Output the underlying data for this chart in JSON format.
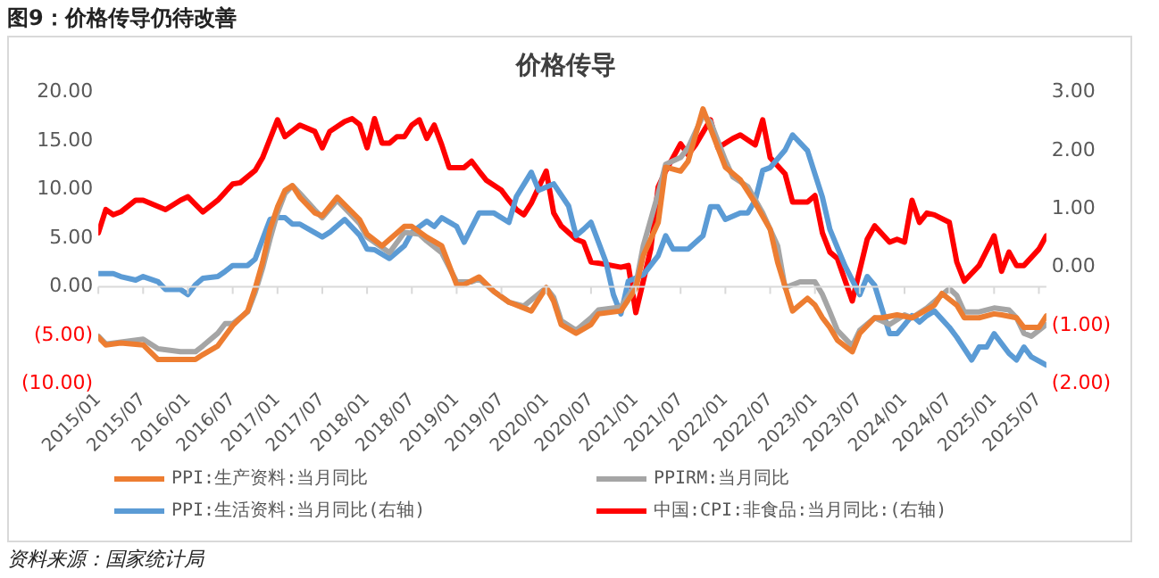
{
  "chart_data": {
    "type": "line",
    "title": "图9：价格传导仍待改善",
    "subtitle": "价格传导",
    "annotations": [
      "资料来源：国家统计局"
    ],
    "xlim": [
      "2015-01",
      "2025-08"
    ],
    "xticks": [
      {
        "value": "2015-01",
        "label": "2015/01"
      },
      {
        "value": "2015-07",
        "label": "2015/07"
      },
      {
        "value": "2016-01",
        "label": "2016/01"
      },
      {
        "value": "2016-07",
        "label": "2016/07"
      },
      {
        "value": "2017-01",
        "label": "2017/01"
      },
      {
        "value": "2017-07",
        "label": "2017/07"
      },
      {
        "value": "2018-01",
        "label": "2018/01"
      },
      {
        "value": "2018-07",
        "label": "2018/07"
      },
      {
        "value": "2019-01",
        "label": "2019/01"
      },
      {
        "value": "2019-07",
        "label": "2019/07"
      },
      {
        "value": "2020-01",
        "label": "2020/01"
      },
      {
        "value": "2020-07",
        "label": "2020/07"
      },
      {
        "value": "2021-01",
        "label": "2021/01"
      },
      {
        "value": "2021-07",
        "label": "2021/07"
      },
      {
        "value": "2022-01",
        "label": "2022/01"
      },
      {
        "value": "2022-07",
        "label": "2022/07"
      },
      {
        "value": "2023-01",
        "label": "2023/01"
      },
      {
        "value": "2023-07",
        "label": "2023/07"
      },
      {
        "value": "2024-01",
        "label": "2024/01"
      },
      {
        "value": "2024-07",
        "label": "2024/07"
      },
      {
        "value": "2025-01",
        "label": "2025/01"
      },
      {
        "value": "2025-07",
        "label": "2025/07"
      }
    ],
    "ylim": [
      -10,
      20
    ],
    "yticks": [
      {
        "value": -10,
        "label": "(10.00)"
      },
      {
        "value": -5,
        "label": "(5.00)"
      },
      {
        "value": 0,
        "label": "0.00"
      },
      {
        "value": 5,
        "label": "5.00"
      },
      {
        "value": 10,
        "label": "10.00"
      },
      {
        "value": 15,
        "label": "15.00"
      },
      {
        "value": 20,
        "label": "20.00"
      }
    ],
    "y2lim": [
      -2,
      3
    ],
    "y2ticks": [
      {
        "value": -2,
        "label": "(2.00)"
      },
      {
        "value": -1,
        "label": "(1.00)"
      },
      {
        "value": 0,
        "label": "0.00"
      },
      {
        "value": 1,
        "label": "1.00"
      },
      {
        "value": 2,
        "label": "2.00"
      },
      {
        "value": 3,
        "label": "3.00"
      }
    ],
    "ref_lines": [
      {
        "axis": "y",
        "value": 0,
        "color": "#d9d9d9"
      }
    ],
    "grid": false,
    "legend": "bottom",
    "marker": "none",
    "line_style": "solid",
    "series": [
      {
        "name": "PPI:生产资料:当月同比",
        "color": "#ed7d31",
        "x": [
          "2015-01",
          "2015-02",
          "2015-04",
          "2015-07",
          "2015-09",
          "2015-12",
          "2016-02",
          "2016-03",
          "2016-05",
          "2016-07",
          "2016-09",
          "2016-10",
          "2016-11",
          "2016-12",
          "2017-01",
          "2017-02",
          "2017-03",
          "2017-04",
          "2017-06",
          "2017-07",
          "2017-09",
          "2017-12",
          "2018-01",
          "2018-03",
          "2018-06",
          "2018-07",
          "2018-09",
          "2018-11",
          "2019-01",
          "2019-02",
          "2019-04",
          "2019-06",
          "2019-08",
          "2019-11",
          "2020-01",
          "2020-02",
          "2020-03",
          "2020-05",
          "2020-07",
          "2020-08",
          "2020-11",
          "2021-01",
          "2021-02",
          "2021-04",
          "2021-05",
          "2021-07",
          "2021-08",
          "2021-10",
          "2021-11",
          "2022-01",
          "2022-03",
          "2022-05",
          "2022-07",
          "2022-08",
          "2022-10",
          "2022-12",
          "2023-01",
          "2023-02",
          "2023-03",
          "2023-04",
          "2023-06",
          "2023-07",
          "2023-09",
          "2023-10",
          "2023-12",
          "2024-02",
          "2024-03",
          "2024-05",
          "2024-06",
          "2024-08",
          "2024-09",
          "2024-11",
          "2025-01",
          "2025-02",
          "2025-04",
          "2025-05",
          "2025-07",
          "2025-08"
        ],
        "values": [
          -5.2,
          -6.0,
          -5.8,
          -6.0,
          -7.5,
          -7.5,
          -7.5,
          -7.0,
          -6.1,
          -4.0,
          -2.5,
          -0.2,
          2.5,
          5.9,
          8.2,
          9.9,
          10.4,
          9.2,
          7.6,
          7.3,
          9.2,
          6.9,
          5.4,
          4.2,
          6.2,
          6.2,
          5.1,
          4.2,
          0.2,
          0.2,
          1.0,
          -0.5,
          -1.6,
          -2.5,
          -0.1,
          -1.5,
          -3.9,
          -4.8,
          -3.9,
          -2.8,
          -2.5,
          -0.2,
          3.2,
          6.6,
          12.3,
          11.9,
          12.9,
          18.3,
          16.3,
          12.3,
          11.0,
          8.6,
          5.9,
          2.5,
          -2.5,
          -1.2,
          -1.9,
          -3.2,
          -4.2,
          -5.5,
          -6.7,
          -4.8,
          -3.2,
          -3.2,
          -2.9,
          -3.2,
          -2.8,
          -1.9,
          -0.7,
          -1.9,
          -3.2,
          -3.2,
          -2.8,
          -2.9,
          -3.2,
          -4.2,
          -4.2,
          -3.0
        ]
      },
      {
        "name": "PPIRM:当月同比",
        "color": "#a5a5a5",
        "x": [
          "2015-01",
          "2015-02",
          "2015-07",
          "2015-09",
          "2015-12",
          "2016-02",
          "2016-03",
          "2016-05",
          "2016-06",
          "2016-07",
          "2016-09",
          "2016-10",
          "2016-11",
          "2016-12",
          "2017-01",
          "2017-02",
          "2017-03",
          "2017-04",
          "2017-06",
          "2017-07",
          "2017-09",
          "2017-12",
          "2018-01",
          "2018-04",
          "2018-06",
          "2018-08",
          "2018-09",
          "2018-11",
          "2019-01",
          "2019-03",
          "2019-04",
          "2019-06",
          "2019-08",
          "2019-10",
          "2020-01",
          "2020-02",
          "2020-03",
          "2020-05",
          "2020-07",
          "2020-08",
          "2020-11",
          "2021-01",
          "2021-02",
          "2021-04",
          "2021-05",
          "2021-07",
          "2021-08",
          "2021-10",
          "2021-11",
          "2022-01",
          "2022-02",
          "2022-04",
          "2022-06",
          "2022-08",
          "2022-09",
          "2022-11",
          "2023-01",
          "2023-02",
          "2023-03",
          "2023-04",
          "2023-06",
          "2023-07",
          "2023-09",
          "2023-11",
          "2024-01",
          "2024-02",
          "2024-04",
          "2024-07",
          "2024-08",
          "2024-09",
          "2024-11",
          "2025-01",
          "2025-03",
          "2025-04",
          "2025-05",
          "2025-06",
          "2025-08"
        ],
        "values": [
          -5.1,
          -5.9,
          -5.4,
          -6.4,
          -6.7,
          -6.7,
          -6.1,
          -4.8,
          -3.8,
          -3.8,
          -2.6,
          -0.6,
          1.9,
          4.9,
          7.6,
          9.6,
          10.4,
          9.6,
          7.9,
          7.1,
          8.9,
          6.5,
          5.1,
          3.5,
          5.6,
          5.4,
          4.7,
          3.5,
          0.5,
          0.5,
          0.8,
          -0.5,
          -1.6,
          -2.0,
          -0.1,
          -1.1,
          -3.5,
          -4.5,
          -3.2,
          -2.4,
          -2.1,
          0.2,
          4.2,
          9.6,
          12.6,
          13.3,
          14.3,
          17.6,
          17.0,
          13.0,
          11.3,
          10.3,
          7.6,
          4.2,
          -0.1,
          0.5,
          0.5,
          -0.8,
          -2.6,
          -4.5,
          -6.1,
          -4.5,
          -3.2,
          -3.9,
          -2.9,
          -3.2,
          -2.2,
          -0.2,
          -0.9,
          -2.6,
          -2.6,
          -2.2,
          -2.4,
          -3.2,
          -4.8,
          -5.1,
          -3.9
        ]
      },
      {
        "name": "PPI:生活资料:当月同比(右轴)",
        "color": "#5b9bd5",
        "axis": "y2",
        "x": [
          "2015-01",
          "2015-03",
          "2015-04",
          "2015-06",
          "2015-07",
          "2015-09",
          "2015-10",
          "2015-12",
          "2016-01",
          "2016-02",
          "2016-03",
          "2016-05",
          "2016-06",
          "2016-07",
          "2016-09",
          "2016-10",
          "2016-11",
          "2016-12",
          "2017-01",
          "2017-02",
          "2017-03",
          "2017-04",
          "2017-07",
          "2017-08",
          "2017-10",
          "2017-12",
          "2018-01",
          "2018-02",
          "2018-04",
          "2018-06",
          "2018-07",
          "2018-09",
          "2018-10",
          "2018-11",
          "2019-01",
          "2019-02",
          "2019-04",
          "2019-06",
          "2019-08",
          "2019-09",
          "2019-11",
          "2019-12",
          "2020-02",
          "2020-04",
          "2020-05",
          "2020-06",
          "2020-07",
          "2020-09",
          "2020-10",
          "2020-11",
          "2020-12",
          "2021-02",
          "2021-04",
          "2021-05",
          "2021-06",
          "2021-08",
          "2021-10",
          "2021-11",
          "2021-12",
          "2022-01",
          "2022-03",
          "2022-04",
          "2022-05",
          "2022-06",
          "2022-07",
          "2022-09",
          "2022-10",
          "2022-12",
          "2023-01",
          "2023-02",
          "2023-03",
          "2023-05",
          "2023-07",
          "2023-08",
          "2023-09",
          "2023-11",
          "2023-12",
          "2024-02",
          "2024-03",
          "2024-04",
          "2024-05",
          "2024-07",
          "2024-08",
          "2024-10",
          "2024-11",
          "2024-12",
          "2025-01",
          "2025-03",
          "2025-04",
          "2025-05",
          "2025-06",
          "2025-08"
        ],
        "values": [
          -0.11,
          -0.11,
          -0.16,
          -0.22,
          -0.16,
          -0.25,
          -0.38,
          -0.38,
          -0.47,
          -0.3,
          -0.19,
          -0.16,
          -0.07,
          0.03,
          0.03,
          0.14,
          0.48,
          0.82,
          0.85,
          0.85,
          0.74,
          0.74,
          0.52,
          0.6,
          0.82,
          0.55,
          0.31,
          0.3,
          0.15,
          0.37,
          0.6,
          0.79,
          0.7,
          0.85,
          0.7,
          0.43,
          0.93,
          0.93,
          0.77,
          1.21,
          1.63,
          1.32,
          1.43,
          1.05,
          0.54,
          0.65,
          0.77,
          0.09,
          -0.47,
          -0.8,
          -0.24,
          -0.13,
          0.2,
          0.54,
          0.31,
          0.31,
          0.54,
          1.04,
          1.04,
          0.82,
          0.93,
          0.93,
          1.15,
          1.66,
          1.71,
          2.01,
          2.27,
          2.0,
          1.6,
          1.2,
          0.65,
          0.03,
          -0.47,
          -0.16,
          -0.31,
          -1.14,
          -1.14,
          -0.83,
          -0.94,
          -0.83,
          -0.75,
          -1.03,
          -1.2,
          -1.59,
          -1.37,
          -1.37,
          -1.14,
          -1.48,
          -1.59,
          -1.37,
          -1.54,
          -1.68
        ]
      },
      {
        "name": "中国:CPI:非食品:当月同比:(右轴)",
        "color": "#ff0000",
        "axis": "y2",
        "x": [
          "2015-01",
          "2015-02",
          "2015-03",
          "2015-04",
          "2015-06",
          "2015-07",
          "2015-10",
          "2015-12",
          "2016-01",
          "2016-03",
          "2016-05",
          "2016-07",
          "2016-08",
          "2016-10",
          "2016-11",
          "2017-01",
          "2017-02",
          "2017-04",
          "2017-06",
          "2017-07",
          "2017-08",
          "2017-10",
          "2017-11",
          "2017-12",
          "2018-01",
          "2018-02",
          "2018-03",
          "2018-04",
          "2018-05",
          "2018-06",
          "2018-07",
          "2018-08",
          "2018-09",
          "2018-10",
          "2018-11",
          "2018-12",
          "2019-02",
          "2019-03",
          "2019-04",
          "2019-05",
          "2019-07",
          "2019-08",
          "2019-09",
          "2019-10",
          "2019-11",
          "2020-01",
          "2020-02",
          "2020-03",
          "2020-05",
          "2020-06",
          "2020-07",
          "2020-09",
          "2020-11",
          "2020-12",
          "2021-01",
          "2021-02",
          "2021-03",
          "2021-04",
          "2021-05",
          "2021-07",
          "2021-08",
          "2021-09",
          "2021-11",
          "2021-12",
          "2022-02",
          "2022-03",
          "2022-05",
          "2022-06",
          "2022-07",
          "2022-09",
          "2022-10",
          "2022-12",
          "2023-01",
          "2023-02",
          "2023-03",
          "2023-04",
          "2023-06",
          "2023-08",
          "2023-09",
          "2023-11",
          "2023-12",
          "2024-01",
          "2024-02",
          "2024-03",
          "2024-04",
          "2024-05",
          "2024-07",
          "2024-08",
          "2024-09",
          "2024-11",
          "2025-01",
          "2025-02",
          "2025-03",
          "2025-04",
          "2025-05",
          "2025-07",
          "2025-08"
        ],
        "values": [
          0.59,
          0.99,
          0.9,
          0.95,
          1.15,
          1.15,
          0.99,
          1.15,
          1.21,
          0.95,
          1.15,
          1.43,
          1.45,
          1.66,
          1.88,
          2.53,
          2.24,
          2.44,
          2.33,
          2.05,
          2.33,
          2.5,
          2.55,
          2.45,
          2.05,
          2.55,
          2.13,
          2.13,
          2.24,
          2.24,
          2.44,
          2.53,
          2.21,
          2.44,
          2.1,
          1.71,
          1.71,
          1.82,
          1.65,
          1.49,
          1.32,
          1.15,
          0.99,
          0.9,
          1.1,
          1.65,
          0.93,
          0.71,
          0.48,
          0.43,
          0.09,
          0.05,
          0.0,
          0.03,
          -0.78,
          -0.24,
          0.31,
          1.38,
          1.65,
          2.12,
          1.93,
          2.1,
          2.53,
          2.05,
          2.21,
          2.27,
          2.1,
          2.53,
          1.88,
          1.6,
          1.12,
          1.12,
          1.23,
          0.59,
          0.26,
          0.15,
          -0.58,
          0.48,
          0.71,
          0.43,
          0.48,
          0.43,
          1.15,
          0.77,
          0.93,
          0.9,
          0.77,
          0.09,
          -0.24,
          0.03,
          0.54,
          -0.07,
          0.26,
          0.03,
          0.03,
          0.31,
          0.54
        ]
      }
    ]
  }
}
